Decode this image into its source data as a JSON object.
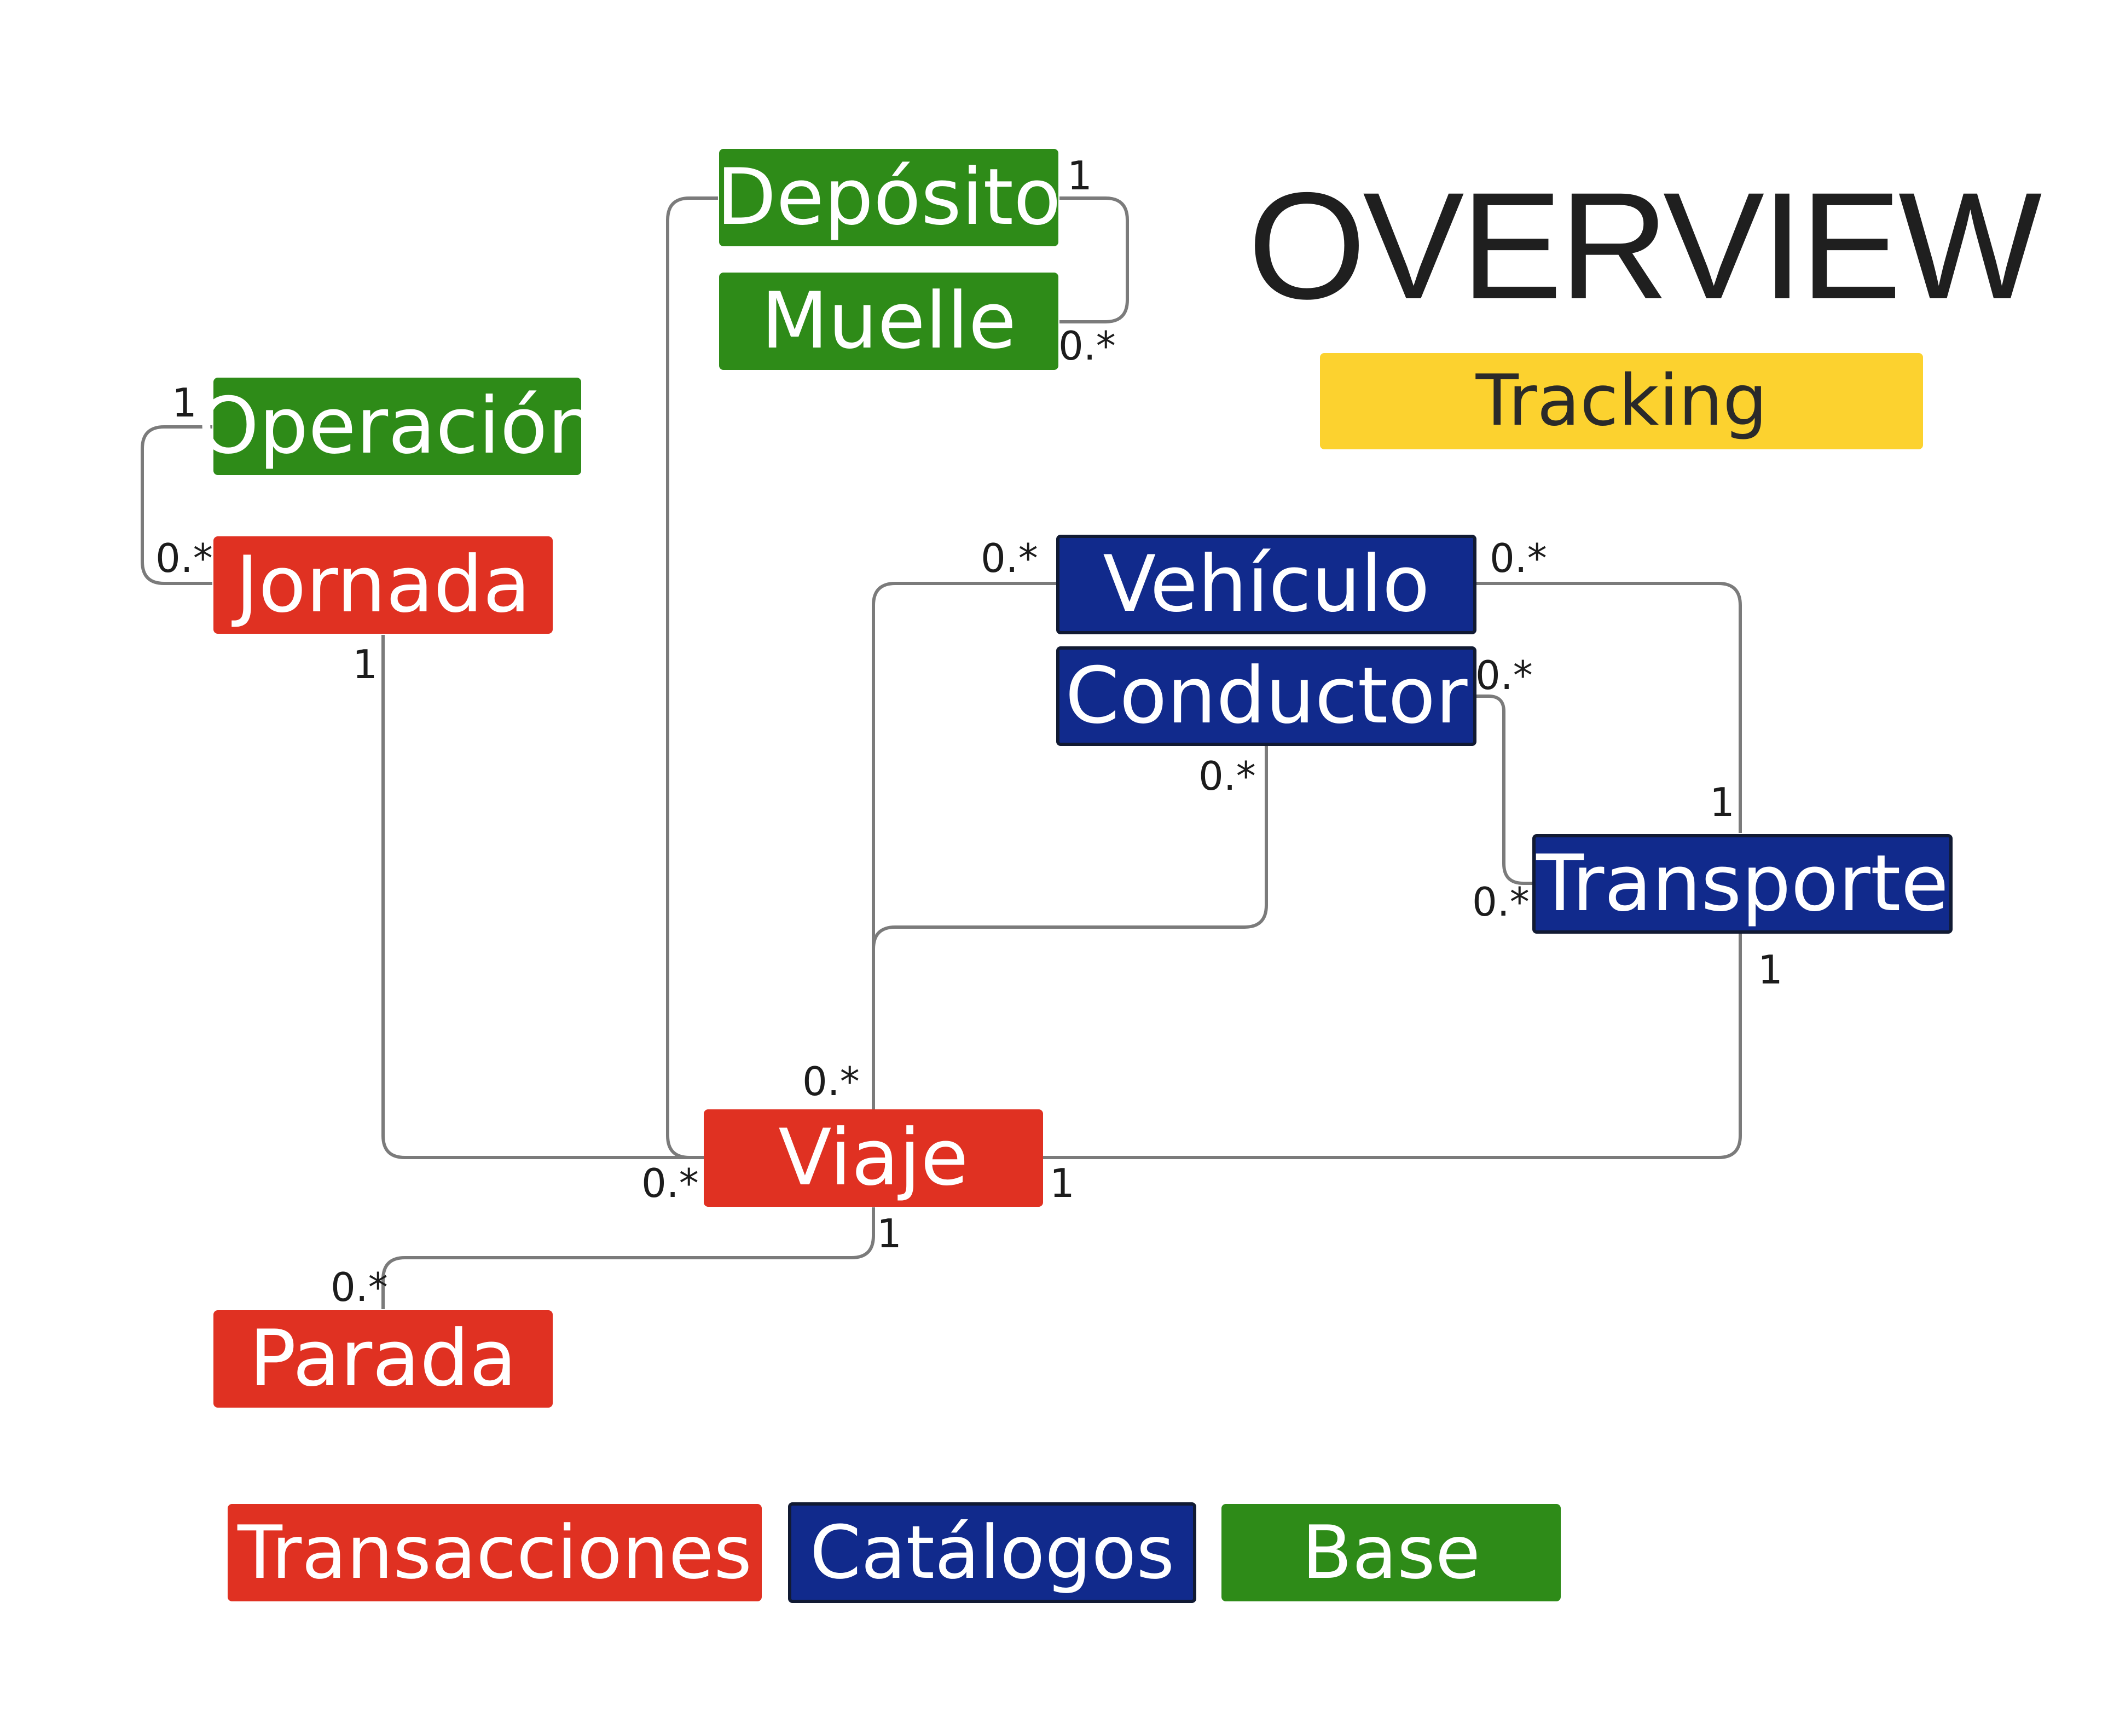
{
  "title": "OVERVIEW",
  "subtitle": "Tracking",
  "colors": {
    "transacciones": "#e03122",
    "catalogos": "#112a8c",
    "base": "#2e8b18",
    "tracking": "#fcd22f",
    "connector": "#7b7b7b"
  },
  "entities": {
    "deposito": "Depósito",
    "muelle": "Muelle",
    "operacion": "Operación",
    "jornada": "Jornada",
    "vehiculo": "Vehículo",
    "conductor": "Conductor",
    "transporte": "Transporte",
    "viaje": "Viaje",
    "parada": "Parada"
  },
  "legend": {
    "transacciones": "Transacciones",
    "catalogos": "Catálogos",
    "base": "Base"
  },
  "relationships": [
    {
      "from": "Depósito",
      "to": "Muelle",
      "from_mult": "1",
      "to_mult": "0.*"
    },
    {
      "from": "Operación",
      "to": "Jornada",
      "from_mult": "1",
      "to_mult": "0.*"
    },
    {
      "from": "Jornada",
      "to": "Viaje",
      "from_mult": "1",
      "to_mult": "0.*"
    },
    {
      "from": "Depósito",
      "to": "Viaje",
      "from_mult": "",
      "to_mult": ""
    },
    {
      "from": "Vehículo",
      "to": "Viaje",
      "from_mult": "0.*",
      "to_mult": "0.*"
    },
    {
      "from": "Conductor",
      "to": "Viaje",
      "from_mult": "0.*",
      "to_mult": ""
    },
    {
      "from": "Vehículo",
      "to": "Transporte",
      "from_mult": "0.*",
      "to_mult": "1"
    },
    {
      "from": "Conductor",
      "to": "Transporte",
      "from_mult": "0.*",
      "to_mult": "0.*"
    },
    {
      "from": "Transporte",
      "to": "Viaje",
      "from_mult": "1",
      "to_mult": "1"
    },
    {
      "from": "Viaje",
      "to": "Parada",
      "from_mult": "1",
      "to_mult": "0.*"
    }
  ],
  "labels": {
    "deposito_one": "1",
    "muelle_many": "0.*",
    "operacion_one": "1",
    "jornada_many": "0.*",
    "jornada_one": "1",
    "vehiculo_left_many": "0.*",
    "vehiculo_right_many": "0.*",
    "conductor_right_many": "0.*",
    "conductor_bottom_many": "0.*",
    "transporte_top_one": "1",
    "transporte_left_many": "0.*",
    "transporte_bottom_one": "1",
    "viaje_top_many": "0.*",
    "viaje_left_many": "0.*",
    "viaje_right_one": "1",
    "viaje_bottom_one": "1",
    "parada_many": "0.*"
  }
}
